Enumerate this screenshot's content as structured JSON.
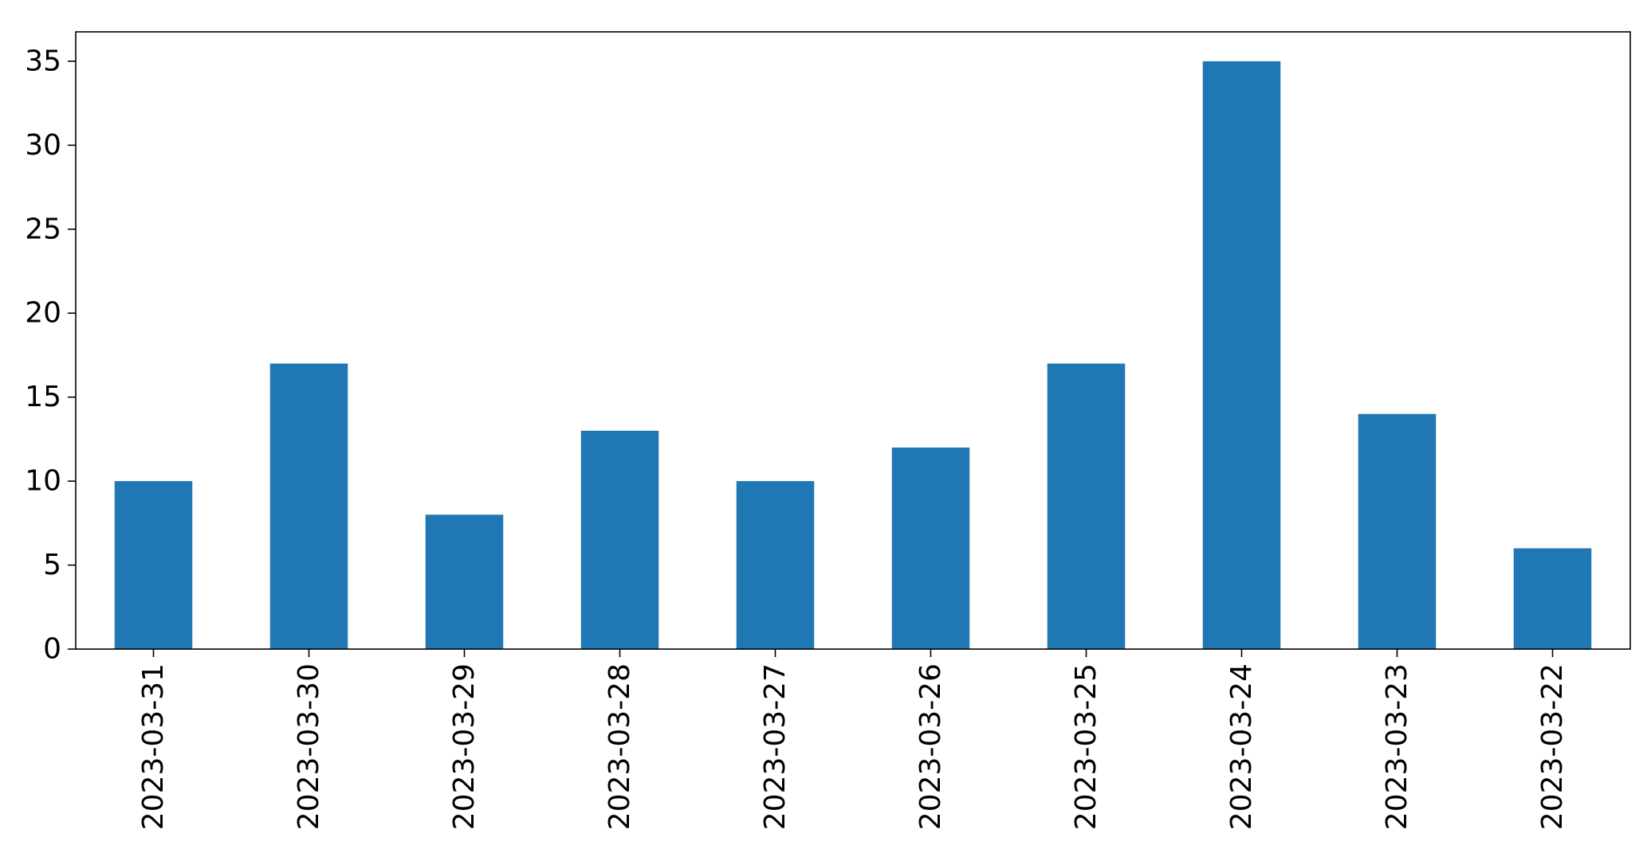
{
  "chart_data": {
    "type": "bar",
    "title": "",
    "xlabel": "",
    "ylabel": "",
    "categories": [
      "2023-03-31",
      "2023-03-30",
      "2023-03-29",
      "2023-03-28",
      "2023-03-27",
      "2023-03-26",
      "2023-03-25",
      "2023-03-24",
      "2023-03-23",
      "2023-03-22"
    ],
    "values": [
      10,
      17,
      8,
      13,
      10,
      12,
      17,
      35,
      14,
      6
    ],
    "ylim": [
      0,
      36.75
    ],
    "yticks": [
      0,
      5,
      10,
      15,
      20,
      25,
      30,
      35
    ],
    "grid": false,
    "legend": "none",
    "bar_color": "#1f77b4"
  }
}
